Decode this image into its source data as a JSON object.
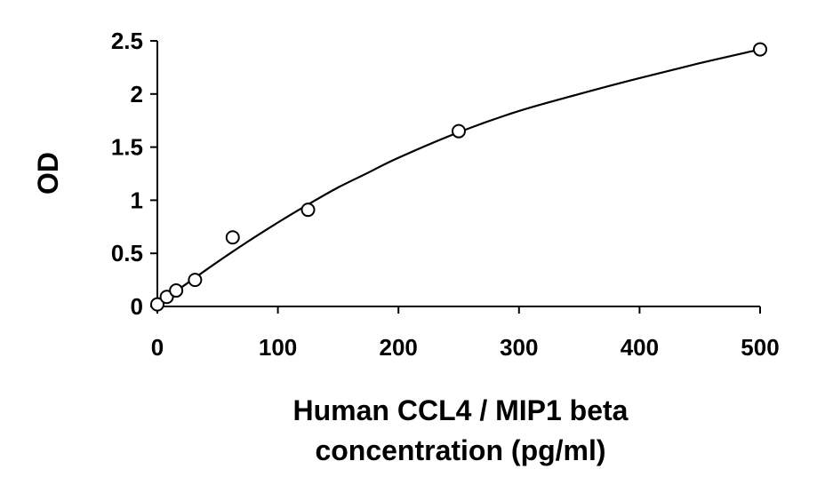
{
  "chart_data": {
    "type": "scatter",
    "title": "",
    "xlabel_lines": [
      "Human CCL4 / MIP1 beta",
      "concentration (pg/ml)"
    ],
    "ylabel": "OD",
    "xlim": [
      0,
      500
    ],
    "ylim": [
      0,
      2.5
    ],
    "x_ticks": [
      0,
      100,
      200,
      300,
      400,
      500
    ],
    "y_ticks": [
      0,
      0.5,
      1,
      1.5,
      2,
      2.5
    ],
    "x_tick_labels": [
      "0",
      "100",
      "200",
      "300",
      "400",
      "500"
    ],
    "y_tick_labels": [
      "0",
      "0.5",
      "1",
      "1.5",
      "2",
      "2.5"
    ],
    "grid": false,
    "legend": "none",
    "series": [
      {
        "marker": "open-circle",
        "x": [
          0,
          7.8,
          15.6,
          31.25,
          62.5,
          125,
          250,
          500
        ],
        "y": [
          0.02,
          0.09,
          0.15,
          0.25,
          0.65,
          0.91,
          1.65,
          2.42
        ]
      }
    ],
    "fit_curve": {
      "x": [
        0,
        25,
        50,
        75,
        100,
        125,
        150,
        175,
        200,
        250,
        300,
        350,
        400,
        450,
        500
      ],
      "y": [
        0.02,
        0.22,
        0.42,
        0.61,
        0.79,
        0.96,
        1.12,
        1.26,
        1.4,
        1.64,
        1.84,
        2.0,
        2.15,
        2.29,
        2.42
      ]
    },
    "colors": {
      "line": "#000000",
      "marker_stroke": "#000000",
      "marker_fill": "#ffffff"
    }
  }
}
